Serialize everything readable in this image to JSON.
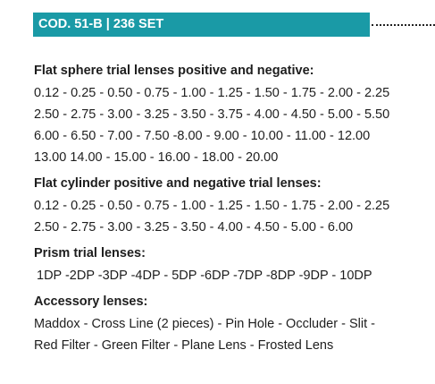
{
  "header": {
    "code_label": "COD. 51-B | 236 SET"
  },
  "sections": [
    {
      "title": "Flat sphere trial lenses positive and negative:",
      "lines": [
        "0.12 - 0.25 - 0.50 - 0.75 - 1.00 - 1.25 - 1.50 - 1.75 - 2.00 - 2.25",
        "2.50 - 2.75 - 3.00 - 3.25 - 3.50 - 3.75 - 4.00 - 4.50 - 5.00 - 5.50",
        "6.00 - 6.50 - 7.00 - 7.50 -8.00 - 9.00 - 10.00 - 11.00 - 12.00",
        "13.00 14.00 - 15.00 - 16.00 - 18.00 - 20.00"
      ]
    },
    {
      "title": "Flat cylinder positive and negative trial lenses:",
      "lines": [
        "0.12 - 0.25 - 0.50 - 0.75 - 1.00 - 1.25 - 1.50 - 1.75 - 2.00 - 2.25",
        "2.50 - 2.75 - 3.00 - 3.25 - 3.50 - 4.00 - 4.50 - 5.00 - 6.00"
      ]
    },
    {
      "title": "Prism trial lenses:",
      "lines": [
        "1DP -2DP -3DP -4DP - 5DP -6DP -7DP -8DP -9DP - 10DP"
      ]
    },
    {
      "title": "Accessory lenses:",
      "lines": [
        "Maddox - Cross Line (2 pieces) - Pin Hole - Occluder - Slit -",
        "Red Filter - Green Filter - Plane Lens - Frosted Lens"
      ]
    }
  ],
  "colors": {
    "banner_bg": "#1a9aa6",
    "banner_text": "#ffffff",
    "body_text": "#1e1e1e"
  }
}
